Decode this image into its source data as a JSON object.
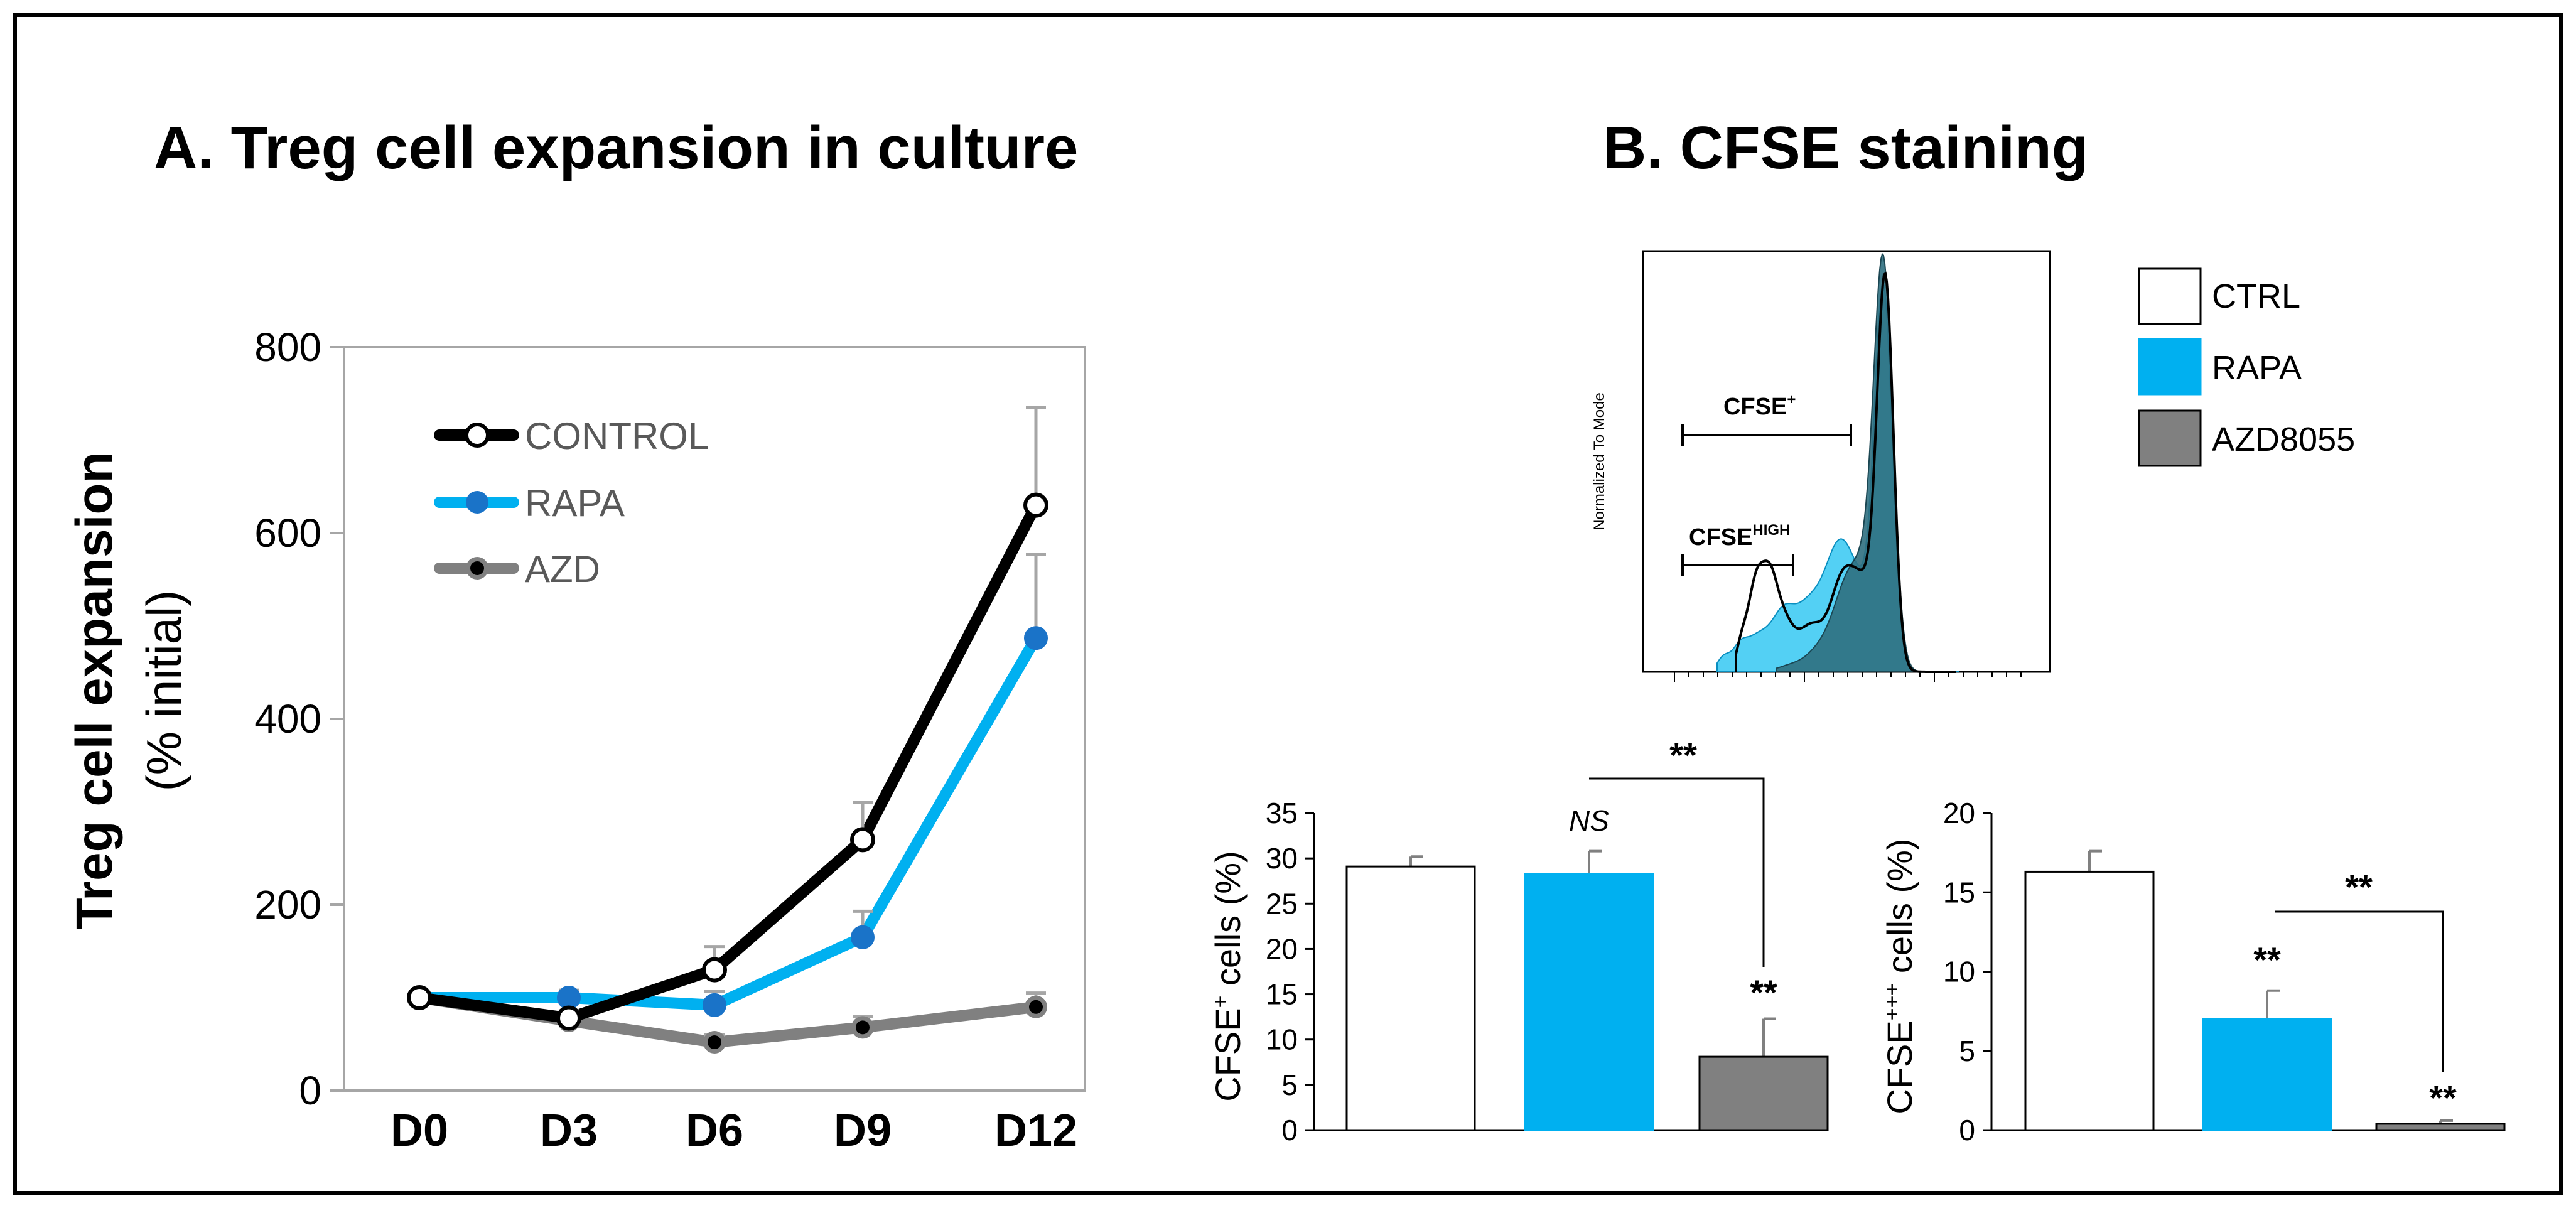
{
  "colors": {
    "control": "#000000",
    "rapa": "#00b0f0",
    "azd": "#808080",
    "azd_point": "#000000",
    "ctrl_bar": "#ffffff",
    "rapa_bar": "#00b0f0",
    "azd_bar": "#808080",
    "hist_rapa": "#35c8f2",
    "hist_azd": "#2f6f7f"
  },
  "panel_a": {
    "title": "A. Treg cell expansion in culture",
    "ylabel_main": "Treg cell expansion",
    "ylabel_sub": "(% initial)"
  },
  "panel_b": {
    "title": "B. CFSE staining",
    "histogram": {
      "y_axis_label": "Normalized To Mode",
      "gate_cfse_plus": "CFSE",
      "gate_cfse_plus_sup": "+",
      "gate_cfse_high": "CFSE",
      "gate_cfse_high_sup": "HIGH"
    },
    "legend": [
      {
        "label": "CTRL",
        "color_key": "ctrl_bar"
      },
      {
        "label": "RAPA",
        "color_key": "rapa_bar"
      },
      {
        "label": "AZD8055",
        "color_key": "azd_bar"
      }
    ],
    "bar1": {
      "ylabel_pre": "CFSE",
      "ylabel_sup": "+",
      "ylabel_post": " cells (%)",
      "annotations": {
        "ns": "NS",
        "sig_azd": "**",
        "sig_bracket": "**"
      }
    },
    "bar2": {
      "ylabel_pre": "CFSE",
      "ylabel_sup": "+++",
      "ylabel_post": " cells (%)",
      "annotations": {
        "sig_rapa": "**",
        "sig_azd": "**",
        "sig_bracket": "**"
      }
    }
  },
  "chart_data": [
    {
      "type": "line",
      "title": "A. Treg cell expansion in culture",
      "xlabel": "",
      "ylabel": "Treg cell expansion (% initial)",
      "categories": [
        "D0",
        "D3",
        "D6",
        "D9",
        "D12"
      ],
      "ylim": [
        0,
        800
      ],
      "yticks": [
        0,
        200,
        400,
        600,
        800
      ],
      "grid": false,
      "legend_position": "top-left",
      "series": [
        {
          "name": "CONTROL",
          "color_key": "control",
          "marker": "open-circle",
          "values": [
            100,
            78,
            130,
            270,
            630
          ],
          "errors": [
            0,
            8,
            25,
            40,
            105
          ]
        },
        {
          "name": "RAPA",
          "color_key": "rapa",
          "marker": "filled-circle",
          "values": [
            100,
            100,
            92,
            165,
            487
          ],
          "errors": [
            0,
            8,
            15,
            28,
            90
          ]
        },
        {
          "name": "AZD",
          "color_key": "azd",
          "marker": "black-dot",
          "values": [
            100,
            75,
            52,
            68,
            90
          ],
          "errors": [
            0,
            5,
            8,
            12,
            15
          ]
        }
      ]
    },
    {
      "type": "bar",
      "title": "",
      "xlabel": "",
      "ylabel": "CFSE + cells (%)",
      "categories": [
        "CTRL",
        "RAPA",
        "AZD8055"
      ],
      "ylim": [
        0,
        35
      ],
      "yticks": [
        0,
        5,
        10,
        15,
        20,
        25,
        30,
        35
      ],
      "values": [
        29.1,
        28.3,
        8.1
      ],
      "errors": [
        1.1,
        2.5,
        4.2
      ]
    },
    {
      "type": "bar",
      "title": "",
      "xlabel": "",
      "ylabel": "CFSE +++ cells (%)",
      "categories": [
        "CTRL",
        "RAPA",
        "AZD8055"
      ],
      "ylim": [
        0,
        20
      ],
      "yticks": [
        0,
        5,
        10,
        15,
        20
      ],
      "values": [
        16.3,
        7.0,
        0.4
      ],
      "errors": [
        1.3,
        1.8,
        0.2
      ]
    }
  ]
}
